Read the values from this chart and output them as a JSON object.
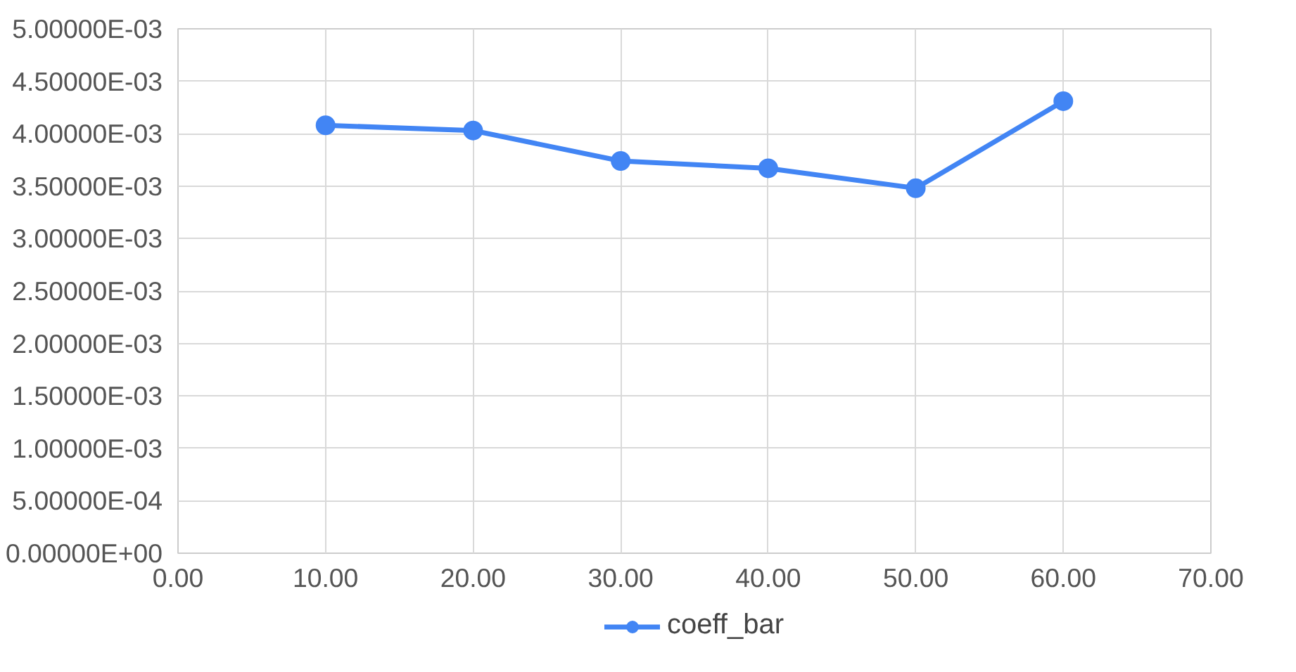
{
  "chart_data": {
    "type": "line",
    "x": [
      10,
      20,
      30,
      40,
      50,
      60
    ],
    "series": [
      {
        "name": "coeff_bar",
        "color": "#4285f4",
        "values": [
          0.00408,
          0.00403,
          0.00374,
          0.00367,
          0.00348,
          0.00431
        ]
      }
    ],
    "xlim": [
      0,
      70
    ],
    "xticks": [
      {
        "value": 0,
        "label": "0.00"
      },
      {
        "value": 10,
        "label": "10.00"
      },
      {
        "value": 20,
        "label": "20.00"
      },
      {
        "value": 30,
        "label": "30.00"
      },
      {
        "value": 40,
        "label": "40.00"
      },
      {
        "value": 50,
        "label": "50.00"
      },
      {
        "value": 60,
        "label": "60.00"
      },
      {
        "value": 70,
        "label": "70.00"
      }
    ],
    "ylim": [
      0,
      0.005
    ],
    "yticks": [
      {
        "value": 0,
        "label": "0.00000E+00"
      },
      {
        "value": 0.0005,
        "label": "5.00000E-04"
      },
      {
        "value": 0.001,
        "label": "1.00000E-03"
      },
      {
        "value": 0.0015,
        "label": "1.50000E-03"
      },
      {
        "value": 0.002,
        "label": "2.00000E-03"
      },
      {
        "value": 0.0025,
        "label": "2.50000E-03"
      },
      {
        "value": 0.003,
        "label": "3.00000E-03"
      },
      {
        "value": 0.0035,
        "label": "3.50000E-03"
      },
      {
        "value": 0.004,
        "label": "4.00000E-03"
      },
      {
        "value": 0.0045,
        "label": "4.50000E-03"
      },
      {
        "value": 0.005,
        "label": "5.00000E-03"
      }
    ],
    "grid": true,
    "legend": "bottom",
    "marker": "circle",
    "line_style": "solid"
  }
}
